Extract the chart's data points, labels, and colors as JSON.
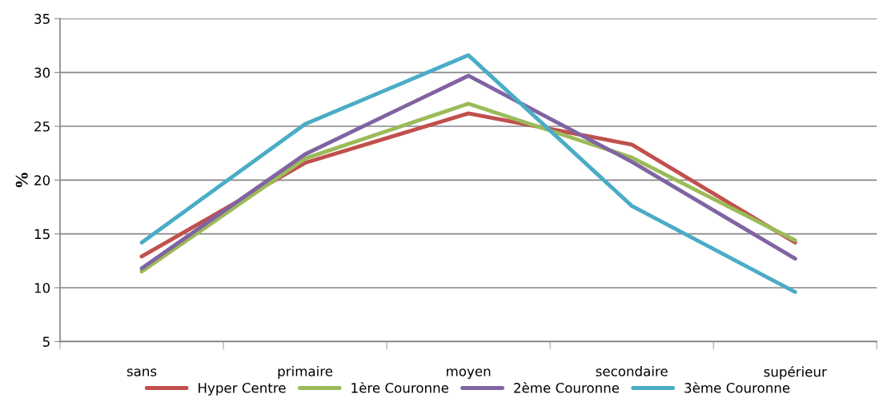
{
  "chart_data": {
    "type": "line",
    "ylabel": "%",
    "categories": [
      "sans",
      "primaire",
      "moyen",
      "secondaire",
      "supérieur"
    ],
    "series": [
      {
        "name": "Hyper Centre",
        "color": "#c0504d",
        "values": [
          12.9,
          21.6,
          26.2,
          23.3,
          14.2
        ]
      },
      {
        "name": "1ère Couronne",
        "color": "#9bbb59",
        "values": [
          11.5,
          22.0,
          27.1,
          22.1,
          14.4
        ]
      },
      {
        "name": "2ème Couronne",
        "color": "#8064a2",
        "values": [
          11.8,
          22.4,
          29.7,
          21.7,
          12.7
        ]
      },
      {
        "name": "3ème Couronne",
        "color": "#4bacc6",
        "values": [
          14.2,
          25.2,
          31.6,
          17.6,
          9.6
        ]
      }
    ],
    "ylim": [
      5,
      35
    ],
    "yticks": [
      5,
      10,
      15,
      20,
      25,
      30,
      35
    ],
    "grid": "y",
    "legend": "bottom",
    "marker": "none",
    "line_style": "solid"
  }
}
